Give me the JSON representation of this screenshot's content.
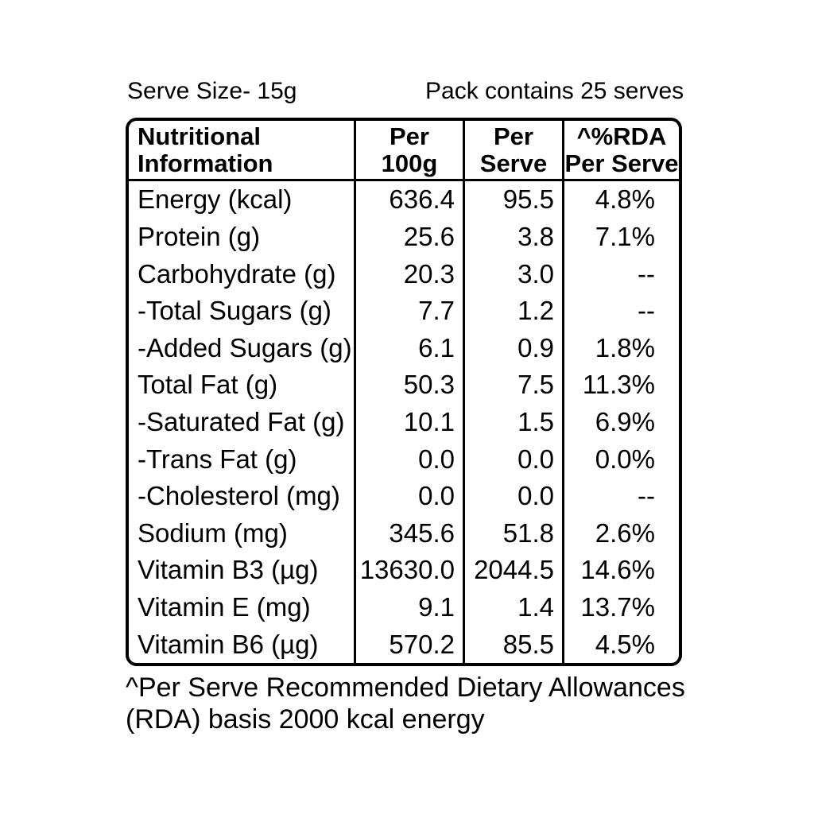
{
  "colors": {
    "background": "#ffffff",
    "text": "#000000",
    "border": "#000000"
  },
  "header": {
    "serve_size": "Serve Size- 15g",
    "pack_contains": "Pack contains 25 serves"
  },
  "table": {
    "columns": [
      {
        "line1": "Nutritional",
        "line2": "Information"
      },
      {
        "line1": "Per",
        "line2": "100g"
      },
      {
        "line1": "Per",
        "line2": "Serve"
      },
      {
        "line1": "^%RDA",
        "line2": "Per Serve"
      }
    ],
    "rows": [
      {
        "label": "Energy (kcal)",
        "per_100g": "636.4",
        "per_serve": "95.5",
        "rda_per_serve": "4.8%"
      },
      {
        "label": "Protein (g)",
        "per_100g": "25.6",
        "per_serve": "3.8",
        "rda_per_serve": "7.1%"
      },
      {
        "label": "Carbohydrate (g)",
        "per_100g": "20.3",
        "per_serve": "3.0",
        "rda_per_serve": "--"
      },
      {
        "label": "-Total Sugars (g)",
        "per_100g": "7.7",
        "per_serve": "1.2",
        "rda_per_serve": "--"
      },
      {
        "label": "-Added Sugars (g)",
        "per_100g": "6.1",
        "per_serve": "0.9",
        "rda_per_serve": "1.8%"
      },
      {
        "label": "Total Fat (g)",
        "per_100g": "50.3",
        "per_serve": "7.5",
        "rda_per_serve": "11.3%"
      },
      {
        "label": "-Saturated Fat (g)",
        "per_100g": "10.1",
        "per_serve": "1.5",
        "rda_per_serve": "6.9%"
      },
      {
        "label": "-Trans Fat (g)",
        "per_100g": "0.0",
        "per_serve": "0.0",
        "rda_per_serve": "0.0%"
      },
      {
        "label": "-Cholesterol (mg)",
        "per_100g": "0.0",
        "per_serve": "0.0",
        "rda_per_serve": "--"
      },
      {
        "label": "Sodium (mg)",
        "per_100g": "345.6",
        "per_serve": "51.8",
        "rda_per_serve": "2.6%"
      },
      {
        "label": "Vitamin B3 (µg)",
        "per_100g": "13630.0",
        "per_serve": "2044.5",
        "rda_per_serve": "14.6%"
      },
      {
        "label": "Vitamin E (mg)",
        "per_100g": "9.1",
        "per_serve": "1.4",
        "rda_per_serve": "13.7%"
      },
      {
        "label": "Vitamin B6 (µg)",
        "per_100g": "570.2",
        "per_serve": "85.5",
        "rda_per_serve": "4.5%"
      }
    ]
  },
  "footnote": {
    "line1": "^Per Serve Recommended Dietary Allowances",
    "line2": "(RDA) basis 2000 kcal energy"
  }
}
